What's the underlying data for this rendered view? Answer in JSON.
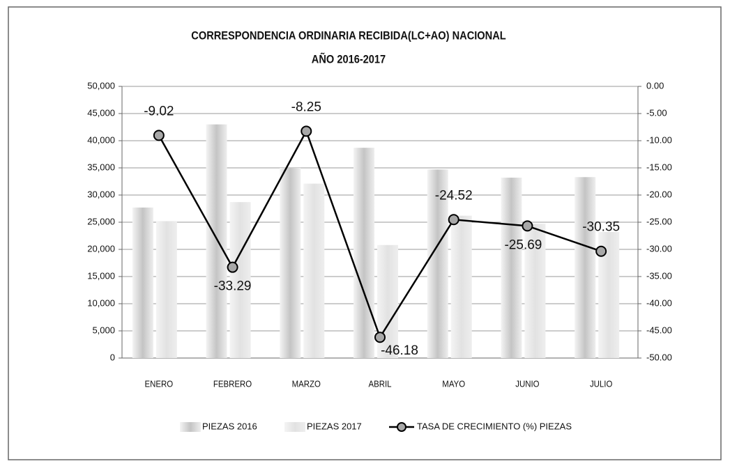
{
  "chart_data": {
    "type": "bar",
    "title": "CORRESPONDENCIA ORDINARIA RECIBIDA(LC+AO) NACIONAL",
    "subtitle": "AÑO 2016-2017",
    "categories": [
      "ENERO",
      "FEBRERO",
      "MARZO",
      "ABRIL",
      "MAYO",
      "JUNIO",
      "JULIO"
    ],
    "series": [
      {
        "name": "PIEZAS 2016",
        "color": "#c4c4c4",
        "values": [
          27700,
          43000,
          35000,
          38700,
          34700,
          33200,
          33300
        ]
      },
      {
        "name": "PIEZAS 2017",
        "color": "#e2e2e2",
        "values": [
          25200,
          28700,
          32100,
          20800,
          26200,
          24700,
          23200
        ]
      },
      {
        "name": "TASA DE CRECIMIENTO  (%) PIEZAS",
        "type": "line",
        "axis": "y2",
        "color": "#000000",
        "marker_color": "#a8a8a8",
        "values": [
          -9.02,
          -33.29,
          -8.25,
          -46.18,
          -24.52,
          -25.69,
          -30.35
        ]
      }
    ],
    "ylim": [
      0,
      50000
    ],
    "yticks": [
      0,
      {
        "value": 5000,
        "label": "5,000"
      },
      {
        "value": 10000,
        "label": "10,000"
      },
      {
        "value": 15000,
        "label": "15,000"
      },
      {
        "value": 20000,
        "label": "20,000"
      },
      {
        "value": 25000,
        "label": "25,000"
      },
      {
        "value": 30000,
        "label": "30,000"
      },
      {
        "value": 35000,
        "label": "35,000"
      },
      {
        "value": 40000,
        "label": "40,000"
      },
      {
        "value": 45000,
        "label": "45,000"
      },
      {
        "value": 50000,
        "label": "50,000"
      }
    ],
    "y2lim": [
      -50,
      0
    ],
    "y2ticks": [
      {
        "value": 0,
        "label": "0.00"
      },
      {
        "value": -5,
        "label": "-5.00"
      },
      {
        "value": -10,
        "label": "-10.00"
      },
      {
        "value": -15,
        "label": "-15.00"
      },
      {
        "value": -20,
        "label": "-20.00"
      },
      {
        "value": -25,
        "label": "-25.00"
      },
      {
        "value": -30,
        "label": "-30.00"
      },
      {
        "value": -35,
        "label": "-35.00"
      },
      {
        "value": -40,
        "label": "-40.00"
      },
      {
        "value": -45,
        "label": "-45.00"
      },
      {
        "value": -50,
        "label": "-50.00"
      }
    ],
    "grid": true,
    "legend": "bottom"
  }
}
